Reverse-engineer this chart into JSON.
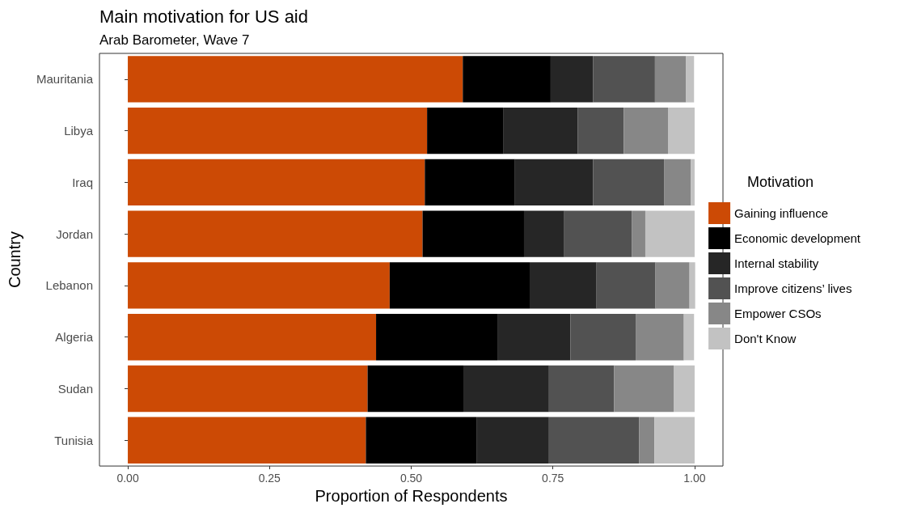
{
  "chart_data": {
    "type": "bar",
    "orientation": "horizontal",
    "stacked": true,
    "title": "Main motivation for US aid",
    "subtitle": "Arab Barometer, Wave 7",
    "xlabel": "Proportion of Respondents",
    "ylabel": "Country",
    "legend_title": "Motivation",
    "legend": "right",
    "grid": false,
    "categories": [
      "Mauritania",
      "Libya",
      "Iraq",
      "Jordan",
      "Lebanon",
      "Algeria",
      "Sudan",
      "Tunisia"
    ],
    "xlim": [
      -0.05,
      1.05
    ],
    "xticks": [
      {
        "value": 0,
        "label": "0.00"
      },
      {
        "value": 0.25,
        "label": "0.25"
      },
      {
        "value": 0.5,
        "label": "0.50"
      },
      {
        "value": 0.75,
        "label": "0.75"
      },
      {
        "value": 1,
        "label": "1.00"
      }
    ],
    "series": [
      {
        "name": "Gaining influence",
        "color": "#cc4a05",
        "values": [
          0.591,
          0.528,
          0.524,
          0.52,
          0.462,
          0.438,
          0.423,
          0.42
        ]
      },
      {
        "name": "Economic development",
        "color": "#000000",
        "values": [
          0.155,
          0.135,
          0.159,
          0.179,
          0.247,
          0.214,
          0.169,
          0.195
        ]
      },
      {
        "name": "Internal stability",
        "color": "#262626",
        "values": [
          0.075,
          0.131,
          0.138,
          0.071,
          0.118,
          0.129,
          0.151,
          0.128
        ]
      },
      {
        "name": "Improve citizens’ lives",
        "color": "#525252",
        "values": [
          0.109,
          0.081,
          0.125,
          0.119,
          0.104,
          0.115,
          0.115,
          0.159
        ]
      },
      {
        "name": "Empower CSOs",
        "color": "#878787",
        "values": [
          0.055,
          0.078,
          0.047,
          0.024,
          0.06,
          0.085,
          0.105,
          0.027
        ]
      },
      {
        "name": "Don't Know",
        "color": "#c2c2c2",
        "values": [
          0.014,
          0.047,
          0.007,
          0.087,
          0.01,
          0.018,
          0.037,
          0.071
        ]
      }
    ]
  }
}
